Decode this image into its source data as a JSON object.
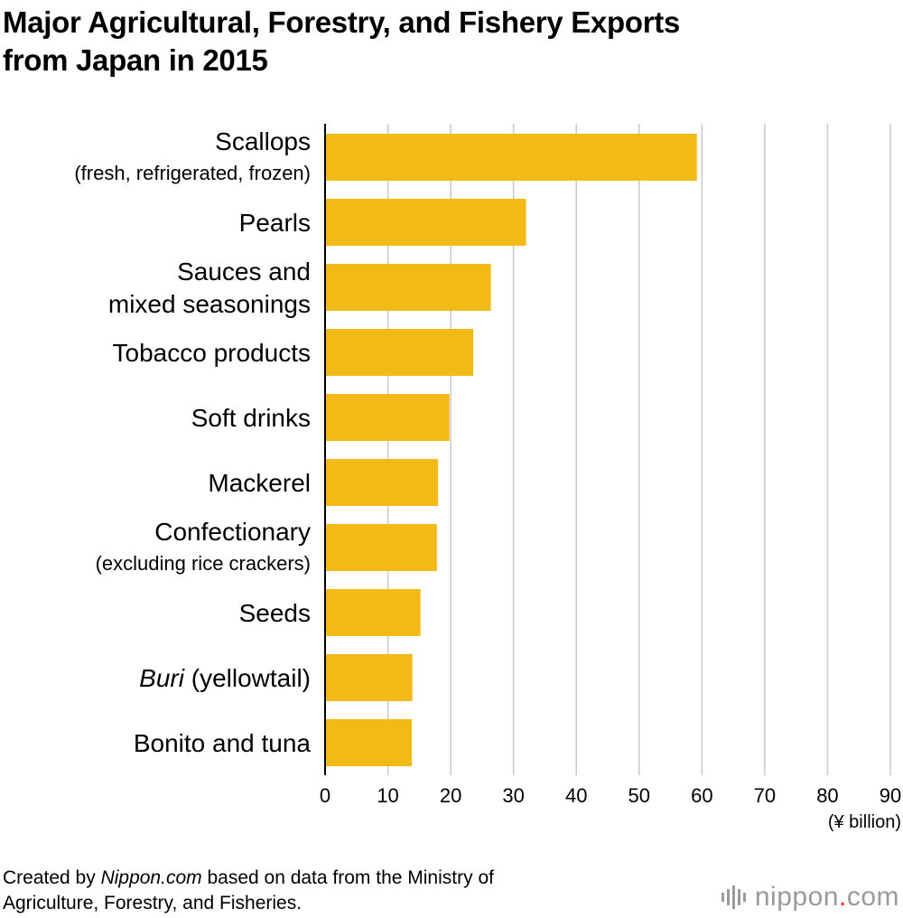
{
  "title_lines": [
    "Major Agricultural, Forestry, and Fishery Exports",
    "from Japan in 2015"
  ],
  "footer": {
    "prefix": "Created by ",
    "source_name": "Nippon.com",
    "suffix": " based on data from the Ministry of",
    "line2": "Agriculture, Forestry, and Fisheries."
  },
  "logo": {
    "text_main": "nippon",
    "text_dot": ".",
    "text_tail": "com"
  },
  "colors": {
    "bar": "#F1BA16",
    "grid": "#c8c8c8",
    "axis": "#000000",
    "logo_dot": "#e0262b"
  },
  "chart_data": {
    "type": "bar",
    "orientation": "horizontal",
    "title": "Major Agricultural, Forestry, and Fishery Exports from Japan in 2015",
    "categories": [
      {
        "lines": [
          "Scallops",
          "(fresh, refrigerated, frozen)"
        ],
        "italic_prefix": "",
        "sub_second_line": true
      },
      {
        "lines": [
          "Pearls"
        ],
        "italic_prefix": "",
        "sub_second_line": false
      },
      {
        "lines": [
          "Sauces and",
          "mixed seasonings"
        ],
        "italic_prefix": "",
        "sub_second_line": false
      },
      {
        "lines": [
          "Tobacco products"
        ],
        "italic_prefix": "",
        "sub_second_line": false
      },
      {
        "lines": [
          "Soft drinks"
        ],
        "italic_prefix": "",
        "sub_second_line": false
      },
      {
        "lines": [
          "Mackerel"
        ],
        "italic_prefix": "",
        "sub_second_line": false
      },
      {
        "lines": [
          "Confectionary",
          "(excluding rice crackers)"
        ],
        "italic_prefix": "",
        "sub_second_line": true
      },
      {
        "lines": [
          "Seeds"
        ],
        "italic_prefix": "",
        "sub_second_line": false
      },
      {
        "lines": [
          " (yellowtail)"
        ],
        "italic_prefix": "Buri",
        "sub_second_line": false
      },
      {
        "lines": [
          "Bonito and tuna"
        ],
        "italic_prefix": "",
        "sub_second_line": false
      }
    ],
    "values": [
      59.2,
      32.0,
      26.4,
      23.6,
      19.8,
      18.0,
      17.8,
      15.2,
      13.9,
      13.8
    ],
    "xlim": [
      0,
      90
    ],
    "xticks": [
      0,
      10,
      20,
      30,
      40,
      50,
      60,
      70,
      80,
      90
    ],
    "xunit": "(¥ billion)",
    "grid": "vertical"
  }
}
